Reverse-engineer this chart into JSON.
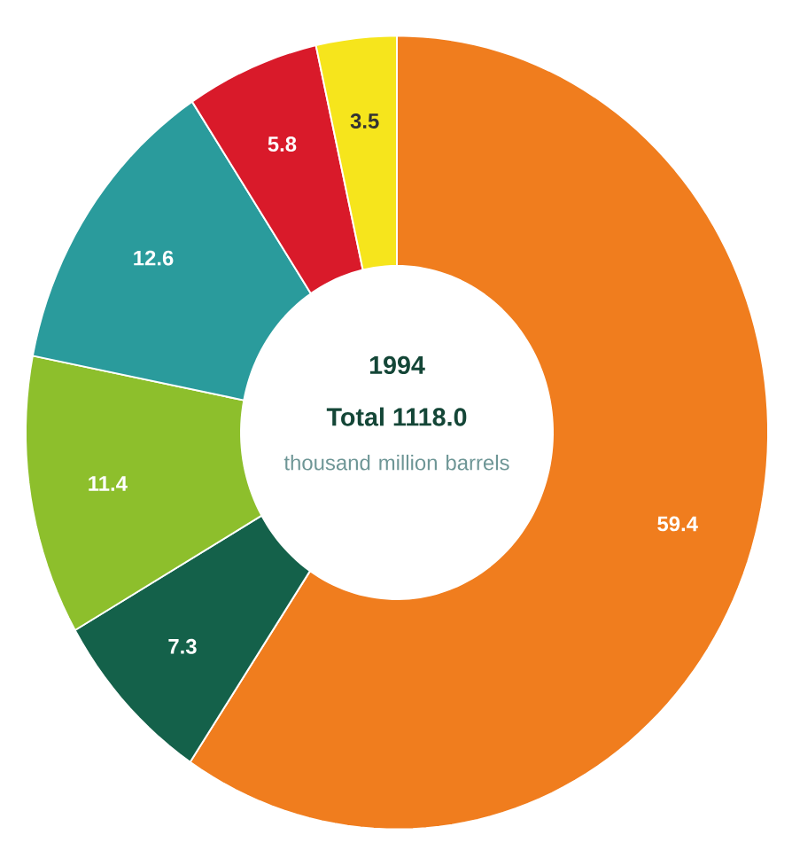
{
  "chart_data": {
    "type": "donut",
    "title": "1994",
    "subtitle": "Total 1118.0",
    "annotations": [
      "thousand million barrels"
    ],
    "categories": [
      null,
      null,
      null,
      null,
      null,
      null
    ],
    "values": [
      59.4,
      7.3,
      11.4,
      12.6,
      5.8,
      3.5
    ],
    "colors": [
      "#f07d1e",
      "#14614a",
      "#8dbf2c",
      "#2a9b9c",
      "#d91a2a",
      "#f6e51c"
    ],
    "data_labels": true
  }
}
